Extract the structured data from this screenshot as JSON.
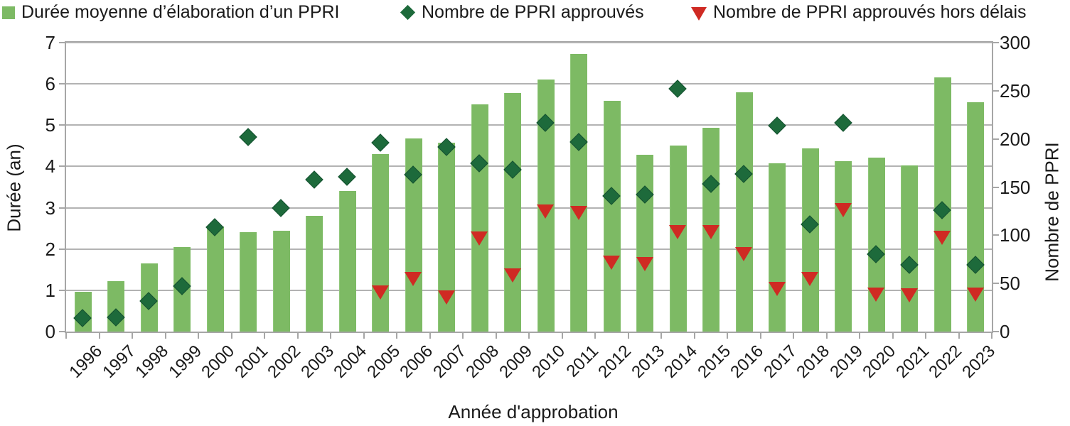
{
  "legend": [
    {
      "label": "Durée moyenne d’élaboration d’un PPRI",
      "marker": "square",
      "color": "#7dba64"
    },
    {
      "label": "Nombre de PPRI approuvés",
      "marker": "diamond",
      "color": "#1d6a3b"
    },
    {
      "label": "Nombre de PPRI approuvés hors délais",
      "marker": "triangle-down",
      "color": "#cf2a23"
    }
  ],
  "chart_data": {
    "type": "bar",
    "subtype": "combo-bar-scatter",
    "categories": [
      "1996",
      "1997",
      "1998",
      "1999",
      "2000",
      "2001",
      "2002",
      "2003",
      "2004",
      "2005",
      "2006",
      "2007",
      "2008",
      "2009",
      "2010",
      "2011",
      "2012",
      "2013",
      "2014",
      "2015",
      "2016",
      "2017",
      "2018",
      "2019",
      "2020",
      "2021",
      "2022",
      "2023"
    ],
    "series": [
      {
        "name": "Durée moyenne d’élaboration d’un PPRI",
        "type": "bar",
        "axis": "left",
        "color": "#7dba64",
        "values": [
          0.97,
          1.22,
          1.65,
          2.05,
          2.55,
          2.4,
          2.45,
          2.8,
          3.4,
          4.3,
          4.68,
          4.57,
          5.5,
          5.78,
          6.11,
          6.72,
          5.59,
          4.28,
          4.5,
          4.94,
          5.8,
          4.08,
          4.43,
          4.12,
          4.22,
          4.03,
          6.16,
          5.55
        ]
      },
      {
        "name": "Nombre de PPRI approuvés",
        "type": "scatter",
        "marker": "diamond",
        "axis": "right",
        "color": "#1d6a3b",
        "values": [
          14,
          15,
          32,
          47,
          108,
          202,
          128,
          158,
          161,
          196,
          163,
          192,
          175,
          168,
          217,
          197,
          141,
          142,
          252,
          153,
          164,
          214,
          111,
          217,
          80,
          69,
          126,
          69
        ]
      },
      {
        "name": "Nombre de PPRI approuvés hors délais",
        "type": "scatter",
        "marker": "triangle-down",
        "axis": "right",
        "color": "#cf2a23",
        "values": [
          null,
          null,
          null,
          null,
          null,
          null,
          null,
          null,
          null,
          41,
          55,
          36,
          97,
          59,
          125,
          124,
          72,
          71,
          104,
          104,
          81,
          45,
          55,
          127,
          39,
          38,
          98,
          39
        ]
      }
    ],
    "left_axis": {
      "label": "Durée (an)",
      "min": 0,
      "max": 7,
      "ticks": [
        0,
        1,
        2,
        3,
        4,
        5,
        6,
        7
      ]
    },
    "right_axis": {
      "label": "Nombre de PPRI",
      "min": 0,
      "max": 300,
      "ticks": [
        0,
        50,
        100,
        150,
        200,
        250,
        300
      ]
    },
    "xlabel": "Année d'approbation",
    "grid": true,
    "legend_position": "top",
    "colors": {
      "bar": "#7dba64",
      "diamond": "#1d6a3b",
      "triangle": "#cf2a23",
      "gridline": "#b3b3b3",
      "axis": "#a6a6a6",
      "text": "#1a1a1a"
    }
  }
}
